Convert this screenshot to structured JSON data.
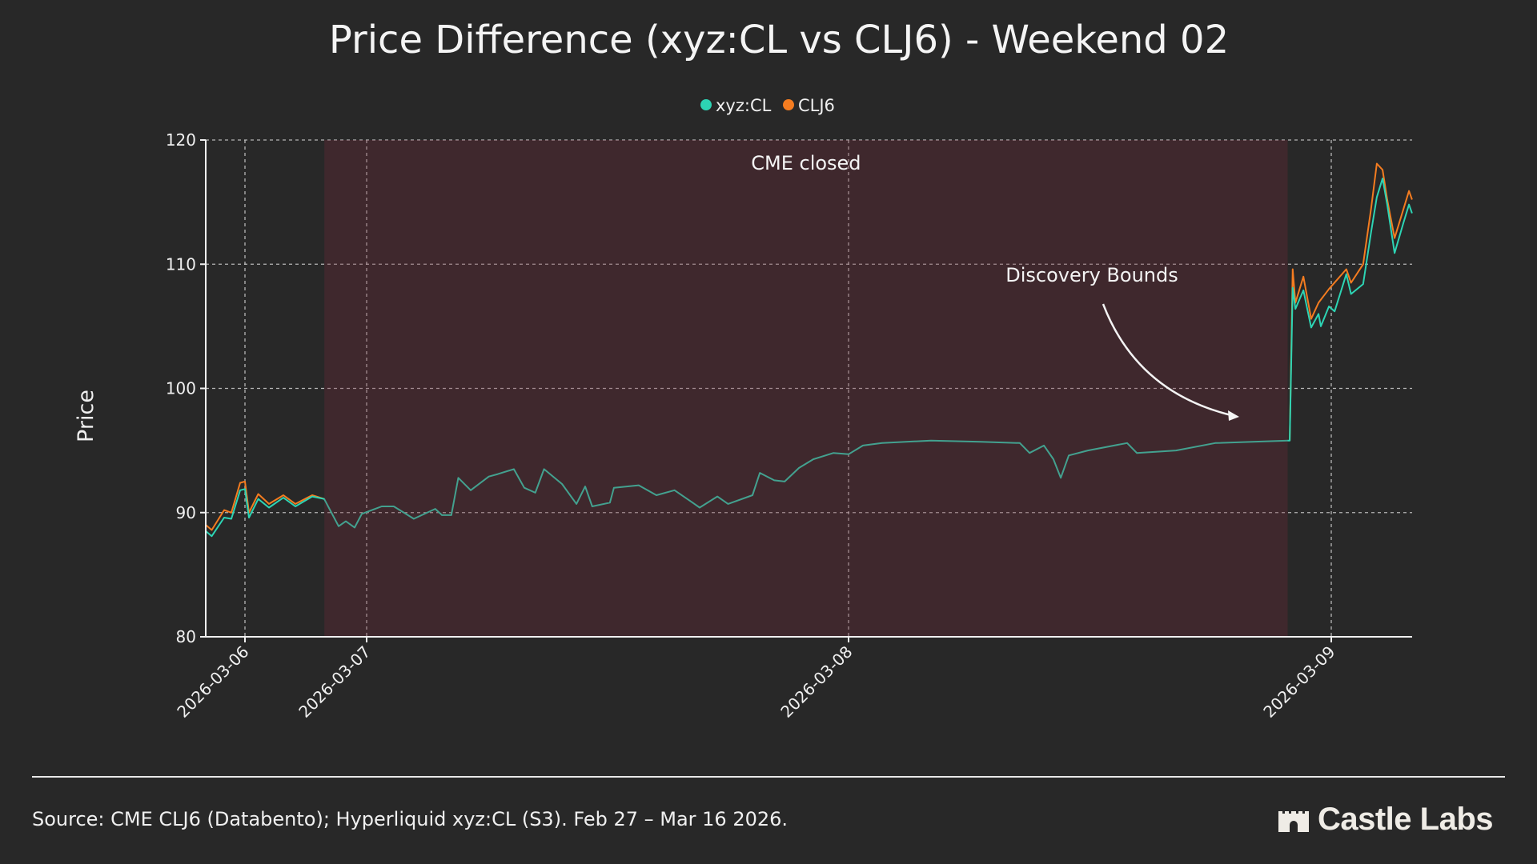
{
  "chart_data": {
    "type": "line",
    "title": "Price Difference (xyz:CL vs CLJ6) - Weekend 02",
    "xlabel": "",
    "ylabel": "Price",
    "ylim": [
      80,
      120
    ],
    "y_ticks": [
      80,
      90,
      100,
      110,
      120
    ],
    "x_ticks": [
      "2026-03-06",
      "2026-03-07",
      "2026-03-08",
      "2026-03-09"
    ],
    "xlim": [
      "2026-03-05T16:15",
      "2026-03-09T04:00"
    ],
    "grid": true,
    "legend_position": "top-center",
    "shaded_region": {
      "label": "CME closed",
      "start": "2026-03-06T15:40",
      "end": "2026-03-08T21:50",
      "color": "#782b3c"
    },
    "annotation": {
      "text": "Discovery Bounds",
      "points_to": {
        "x": "2026-03-08T21:00",
        "value": 97.5
      }
    },
    "series": [
      {
        "name": "xyz:CL",
        "color": "#2dd4b4",
        "points": [
          [
            "2026-03-05T16:18",
            88.5
          ],
          [
            "2026-03-05T17:27",
            88.1
          ],
          [
            "2026-03-05T19:54",
            89.6
          ],
          [
            "2026-03-05T21:19",
            89.5
          ],
          [
            "2026-03-05T23:03",
            91.8
          ],
          [
            "2026-03-06T00:00",
            91.9
          ],
          [
            "2026-03-06T00:47",
            89.6
          ],
          [
            "2026-03-06T02:37",
            91.1
          ],
          [
            "2026-03-06T04:44",
            90.4
          ],
          [
            "2026-03-06T07:35",
            91.2
          ],
          [
            "2026-03-06T09:57",
            90.5
          ],
          [
            "2026-03-06T13:16",
            91.3
          ],
          [
            "2026-03-06T15:38",
            91.1
          ],
          [
            "2026-03-06T18:28",
            88.9
          ],
          [
            "2026-03-06T19:54",
            89.3
          ],
          [
            "2026-03-06T21:38",
            88.8
          ],
          [
            "2026-03-06T23:03",
            89.9
          ],
          [
            "2026-03-07T00:45",
            90.5
          ],
          [
            "2026-03-07T01:21",
            90.5
          ],
          [
            "2026-03-07T02:21",
            89.5
          ],
          [
            "2026-03-07T03:25",
            90.3
          ],
          [
            "2026-03-07T03:45",
            89.8
          ],
          [
            "2026-03-07T04:13",
            89.8
          ],
          [
            "2026-03-07T04:34",
            92.8
          ],
          [
            "2026-03-07T05:11",
            91.8
          ],
          [
            "2026-03-07T06:05",
            92.9
          ],
          [
            "2026-03-07T06:32",
            93.1
          ],
          [
            "2026-03-07T07:20",
            93.5
          ],
          [
            "2026-03-07T07:51",
            92.0
          ],
          [
            "2026-03-07T08:24",
            91.6
          ],
          [
            "2026-03-07T08:50",
            93.5
          ],
          [
            "2026-03-07T09:44",
            92.3
          ],
          [
            "2026-03-07T10:27",
            90.7
          ],
          [
            "2026-03-07T10:53",
            92.1
          ],
          [
            "2026-03-07T11:14",
            90.5
          ],
          [
            "2026-03-07T12:07",
            90.8
          ],
          [
            "2026-03-07T12:19",
            92.0
          ],
          [
            "2026-03-07T13:33",
            92.2
          ],
          [
            "2026-03-07T14:26",
            91.4
          ],
          [
            "2026-03-07T15:20",
            91.8
          ],
          [
            "2026-03-07T16:14",
            90.8
          ],
          [
            "2026-03-07T16:35",
            90.4
          ],
          [
            "2026-03-07T17:28",
            91.3
          ],
          [
            "2026-03-07T18:00",
            90.7
          ],
          [
            "2026-03-07T19:13",
            91.4
          ],
          [
            "2026-03-07T19:35",
            93.2
          ],
          [
            "2026-03-07T20:18",
            92.6
          ],
          [
            "2026-03-07T20:49",
            92.5
          ],
          [
            "2026-03-07T21:32",
            93.6
          ],
          [
            "2026-03-07T22:15",
            94.3
          ],
          [
            "2026-03-07T23:15",
            94.8
          ],
          [
            "2026-03-08T00:00",
            94.7
          ],
          [
            "2026-03-08T00:43",
            95.4
          ],
          [
            "2026-03-08T01:40",
            95.6
          ],
          [
            "2026-03-08T04:06",
            95.8
          ],
          [
            "2026-03-08T06:34",
            95.7
          ],
          [
            "2026-03-08T08:31",
            95.6
          ],
          [
            "2026-03-08T09:00",
            94.8
          ],
          [
            "2026-03-08T09:43",
            95.4
          ],
          [
            "2026-03-08T10:11",
            94.3
          ],
          [
            "2026-03-08T10:33",
            92.8
          ],
          [
            "2026-03-08T10:57",
            94.6
          ],
          [
            "2026-03-08T11:54",
            95.0
          ],
          [
            "2026-03-08T13:51",
            95.6
          ],
          [
            "2026-03-08T14:20",
            94.8
          ],
          [
            "2026-03-08T16:17",
            95.0
          ],
          [
            "2026-03-08T18:14",
            95.6
          ],
          [
            "2026-03-08T21:51",
            95.8
          ],
          [
            "2026-03-08T21:56",
            95.8
          ],
          [
            "2026-03-08T22:05",
            108.1
          ],
          [
            "2026-03-08T22:13",
            106.4
          ],
          [
            "2026-03-08T22:37",
            107.9
          ],
          [
            "2026-03-08T23:00",
            104.9
          ],
          [
            "2026-03-08T23:22",
            106.0
          ],
          [
            "2026-03-08T23:29",
            105.0
          ],
          [
            "2026-03-08T23:53",
            106.6
          ],
          [
            "2026-03-09T00:10",
            106.2
          ],
          [
            "2026-03-09T00:45",
            109.2
          ],
          [
            "2026-03-09T00:59",
            107.6
          ],
          [
            "2026-03-09T01:35",
            108.4
          ],
          [
            "2026-03-09T01:59",
            112.6
          ],
          [
            "2026-03-09T02:16",
            115.4
          ],
          [
            "2026-03-09T02:33",
            116.9
          ],
          [
            "2026-03-09T02:47",
            114.8
          ],
          [
            "2026-03-09T03:09",
            110.9
          ],
          [
            "2026-03-09T03:35",
            113.3
          ],
          [
            "2026-03-09T03:52",
            114.8
          ],
          [
            "2026-03-09T04:01",
            114.1
          ]
        ]
      },
      {
        "name": "CLJ6",
        "color": "#f47c20",
        "points": [
          [
            "2026-03-05T16:18",
            89.0
          ],
          [
            "2026-03-05T17:27",
            88.6
          ],
          [
            "2026-03-05T19:54",
            90.2
          ],
          [
            "2026-03-05T21:19",
            90.0
          ],
          [
            "2026-03-05T23:03",
            92.4
          ],
          [
            "2026-03-06T00:00",
            92.5
          ],
          [
            "2026-03-06T00:47",
            90.0
          ],
          [
            "2026-03-06T02:37",
            91.5
          ],
          [
            "2026-03-06T04:44",
            90.7
          ],
          [
            "2026-03-06T07:35",
            91.4
          ],
          [
            "2026-03-06T09:57",
            90.7
          ],
          [
            "2026-03-06T13:16",
            91.4
          ],
          [
            "2026-03-06T15:38",
            91.1
          ],
          null,
          [
            "2026-03-08T21:56",
            95.8
          ],
          [
            "2026-03-08T22:05",
            109.6
          ],
          [
            "2026-03-08T22:13",
            106.9
          ],
          [
            "2026-03-08T22:37",
            109.0
          ],
          [
            "2026-03-08T23:00",
            105.6
          ],
          [
            "2026-03-08T23:22",
            106.9
          ],
          [
            "2026-03-08T23:53",
            108.0
          ],
          [
            "2026-03-09T00:45",
            109.6
          ],
          [
            "2026-03-09T00:59",
            108.5
          ],
          [
            "2026-03-09T01:35",
            110.0
          ],
          [
            "2026-03-09T01:59",
            114.5
          ],
          [
            "2026-03-09T02:16",
            118.1
          ],
          [
            "2026-03-09T02:33",
            117.6
          ],
          [
            "2026-03-09T02:47",
            115.2
          ],
          [
            "2026-03-09T03:09",
            112.1
          ],
          [
            "2026-03-09T03:35",
            114.4
          ],
          [
            "2026-03-09T03:52",
            115.9
          ],
          [
            "2026-03-09T04:01",
            115.2
          ]
        ]
      }
    ]
  },
  "footer": {
    "source": "Source: CME CLJ6 (Databento); Hyperliquid xyz:CL (S3). Feb 27 – Mar 16 2026.",
    "logo_text": "Castle Labs"
  }
}
